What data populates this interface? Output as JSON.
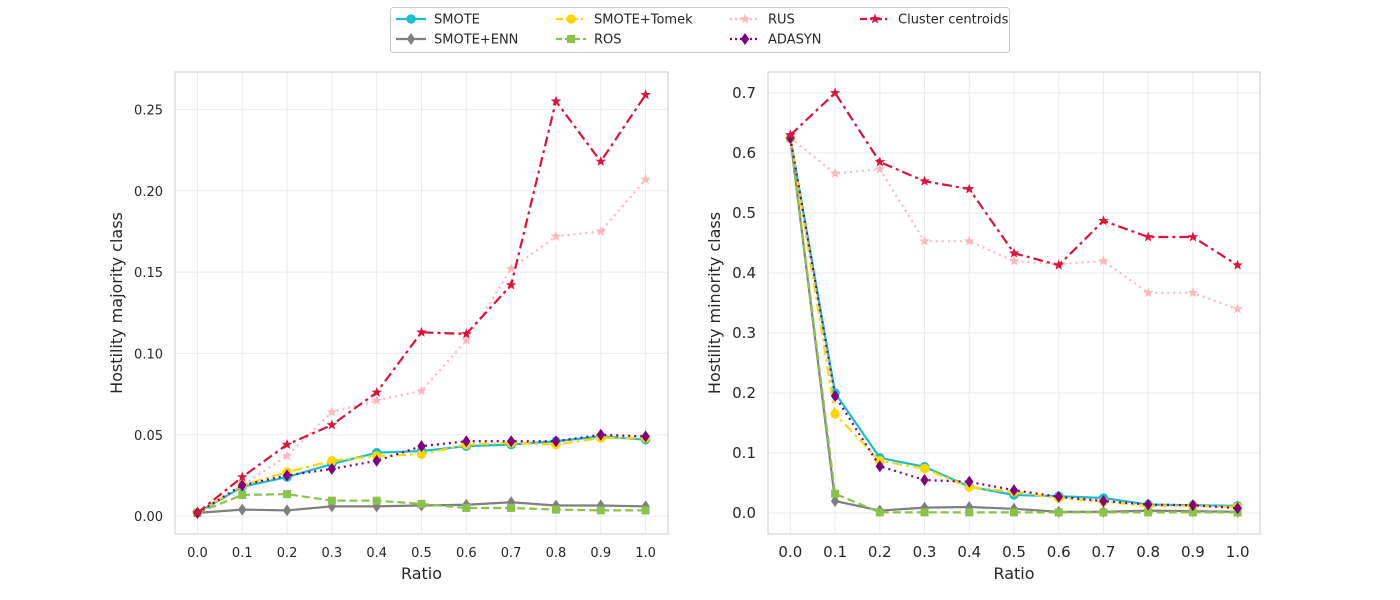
{
  "legend": {
    "entries": [
      {
        "label": "SMOTE",
        "series": "SMOTE"
      },
      {
        "label": "SMOTE+ENN",
        "series": "SMOTE+ENN"
      },
      {
        "label": "SMOTE+Tomek",
        "series": "SMOTE+Tomek"
      },
      {
        "label": "ROS",
        "series": "ROS"
      },
      {
        "label": "RUS",
        "series": "RUS"
      },
      {
        "label": "ADASYN",
        "series": "ADASYN"
      },
      {
        "label": "Cluster centroids",
        "series": "Cluster centroids"
      }
    ],
    "placement": "top-center"
  },
  "series_style": {
    "SMOTE": {
      "color": "#17becf",
      "dash": "solid",
      "marker": "circle"
    },
    "SMOTE+ENN": {
      "color": "#7f7f7f",
      "dash": "solid",
      "marker": "diamond"
    },
    "SMOTE+Tomek": {
      "color": "#ffd700",
      "dash": "dashdot",
      "marker": "circle"
    },
    "ROS": {
      "color": "#8bc34a",
      "dash": "dashed",
      "marker": "square"
    },
    "RUS": {
      "color": "#ffb6c1",
      "dash": "dotted",
      "marker": "star"
    },
    "ADASYN": {
      "color": "#800080",
      "dash": "dotted",
      "marker": "diamond"
    },
    "Cluster centroids": {
      "color": "#dc143c",
      "dash": "dashdot",
      "marker": "star"
    }
  },
  "chart_data": [
    {
      "type": "line",
      "xlabel": "Ratio",
      "ylabel": "Hostility majority class",
      "x": [
        0.0,
        0.1,
        0.2,
        0.3,
        0.4,
        0.5,
        0.6,
        0.7,
        0.8,
        0.9,
        1.0
      ],
      "xticks": [
        "0.0",
        "0.1",
        "0.2",
        "0.3",
        "0.4",
        "0.5",
        "0.6",
        "0.7",
        "0.8",
        "0.9",
        "1.0"
      ],
      "yticks": [
        "0.00",
        "0.05",
        "0.10",
        "0.15",
        "0.20",
        "0.25"
      ],
      "ytick_values": [
        0.0,
        0.05,
        0.1,
        0.15,
        0.2,
        0.25
      ],
      "xlim": [
        -0.05,
        1.05
      ],
      "ylim": [
        -0.011,
        0.273
      ],
      "grid": true,
      "series": [
        {
          "name": "SMOTE",
          "values": [
            0.002,
            0.018,
            0.024,
            0.032,
            0.039,
            0.04,
            0.043,
            0.044,
            0.046,
            0.049,
            0.047
          ]
        },
        {
          "name": "SMOTE+ENN",
          "values": [
            0.002,
            0.004,
            0.0035,
            0.006,
            0.006,
            0.0065,
            0.007,
            0.0085,
            0.0065,
            0.0065,
            0.006
          ]
        },
        {
          "name": "SMOTE+Tomek",
          "values": [
            0.002,
            0.019,
            0.027,
            0.034,
            0.037,
            0.038,
            0.044,
            0.045,
            0.044,
            0.048,
            0.048
          ]
        },
        {
          "name": "ROS",
          "values": [
            0.002,
            0.013,
            0.0135,
            0.0095,
            0.0095,
            0.0075,
            0.005,
            0.005,
            0.004,
            0.0035,
            0.0035
          ]
        },
        {
          "name": "RUS",
          "values": [
            0.002,
            0.019,
            0.037,
            0.064,
            0.071,
            0.077,
            0.108,
            0.152,
            0.172,
            0.175,
            0.207
          ]
        },
        {
          "name": "ADASYN",
          "values": [
            0.002,
            0.019,
            0.025,
            0.029,
            0.034,
            0.043,
            0.046,
            0.046,
            0.046,
            0.05,
            0.049
          ]
        },
        {
          "name": "Cluster centroids",
          "values": [
            0.002,
            0.024,
            0.044,
            0.056,
            0.076,
            0.113,
            0.112,
            0.142,
            0.255,
            0.218,
            0.259
          ]
        }
      ]
    },
    {
      "type": "line",
      "xlabel": "Ratio",
      "ylabel": "Hostility minority class",
      "x": [
        0.0,
        0.1,
        0.2,
        0.3,
        0.4,
        0.5,
        0.6,
        0.7,
        0.8,
        0.9,
        1.0
      ],
      "xticks": [
        "0.0",
        "0.1",
        "0.2",
        "0.3",
        "0.4",
        "0.5",
        "0.6",
        "0.7",
        "0.8",
        "0.9",
        "1.0"
      ],
      "yticks": [
        "0.0",
        "0.1",
        "0.2",
        "0.3",
        "0.4",
        "0.5",
        "0.6",
        "0.7"
      ],
      "ytick_values": [
        0.0,
        0.1,
        0.2,
        0.3,
        0.4,
        0.5,
        0.6,
        0.7
      ],
      "xlim": [
        -0.05,
        1.05
      ],
      "ylim": [
        -0.035,
        0.735
      ],
      "grid": true,
      "series": [
        {
          "name": "SMOTE",
          "values": [
            0.625,
            0.2,
            0.092,
            0.077,
            0.044,
            0.03,
            0.028,
            0.025,
            0.014,
            0.013,
            0.012
          ]
        },
        {
          "name": "SMOTE+ENN",
          "values": [
            0.625,
            0.02,
            0.004,
            0.009,
            0.01,
            0.007,
            0.002,
            0.002,
            0.004,
            0.003,
            0.002
          ]
        },
        {
          "name": "SMOTE+Tomek",
          "values": [
            0.625,
            0.165,
            0.087,
            0.074,
            0.043,
            0.035,
            0.025,
            0.019,
            0.012,
            0.012,
            0.01
          ]
        },
        {
          "name": "ROS",
          "values": [
            0.625,
            0.032,
            0.001,
            0.001,
            0.001,
            0.001,
            0.001,
            0.001,
            0.001,
            0.001,
            0.001
          ]
        },
        {
          "name": "RUS",
          "values": [
            0.625,
            0.566,
            0.573,
            0.453,
            0.453,
            0.42,
            0.415,
            0.42,
            0.367,
            0.367,
            0.34
          ]
        },
        {
          "name": "ADASYN",
          "values": [
            0.625,
            0.195,
            0.078,
            0.055,
            0.052,
            0.038,
            0.027,
            0.02,
            0.014,
            0.013,
            0.008
          ]
        },
        {
          "name": "Cluster centroids",
          "values": [
            0.63,
            0.7,
            0.585,
            0.553,
            0.54,
            0.433,
            0.413,
            0.487,
            0.46,
            0.46,
            0.413
          ]
        }
      ]
    }
  ]
}
